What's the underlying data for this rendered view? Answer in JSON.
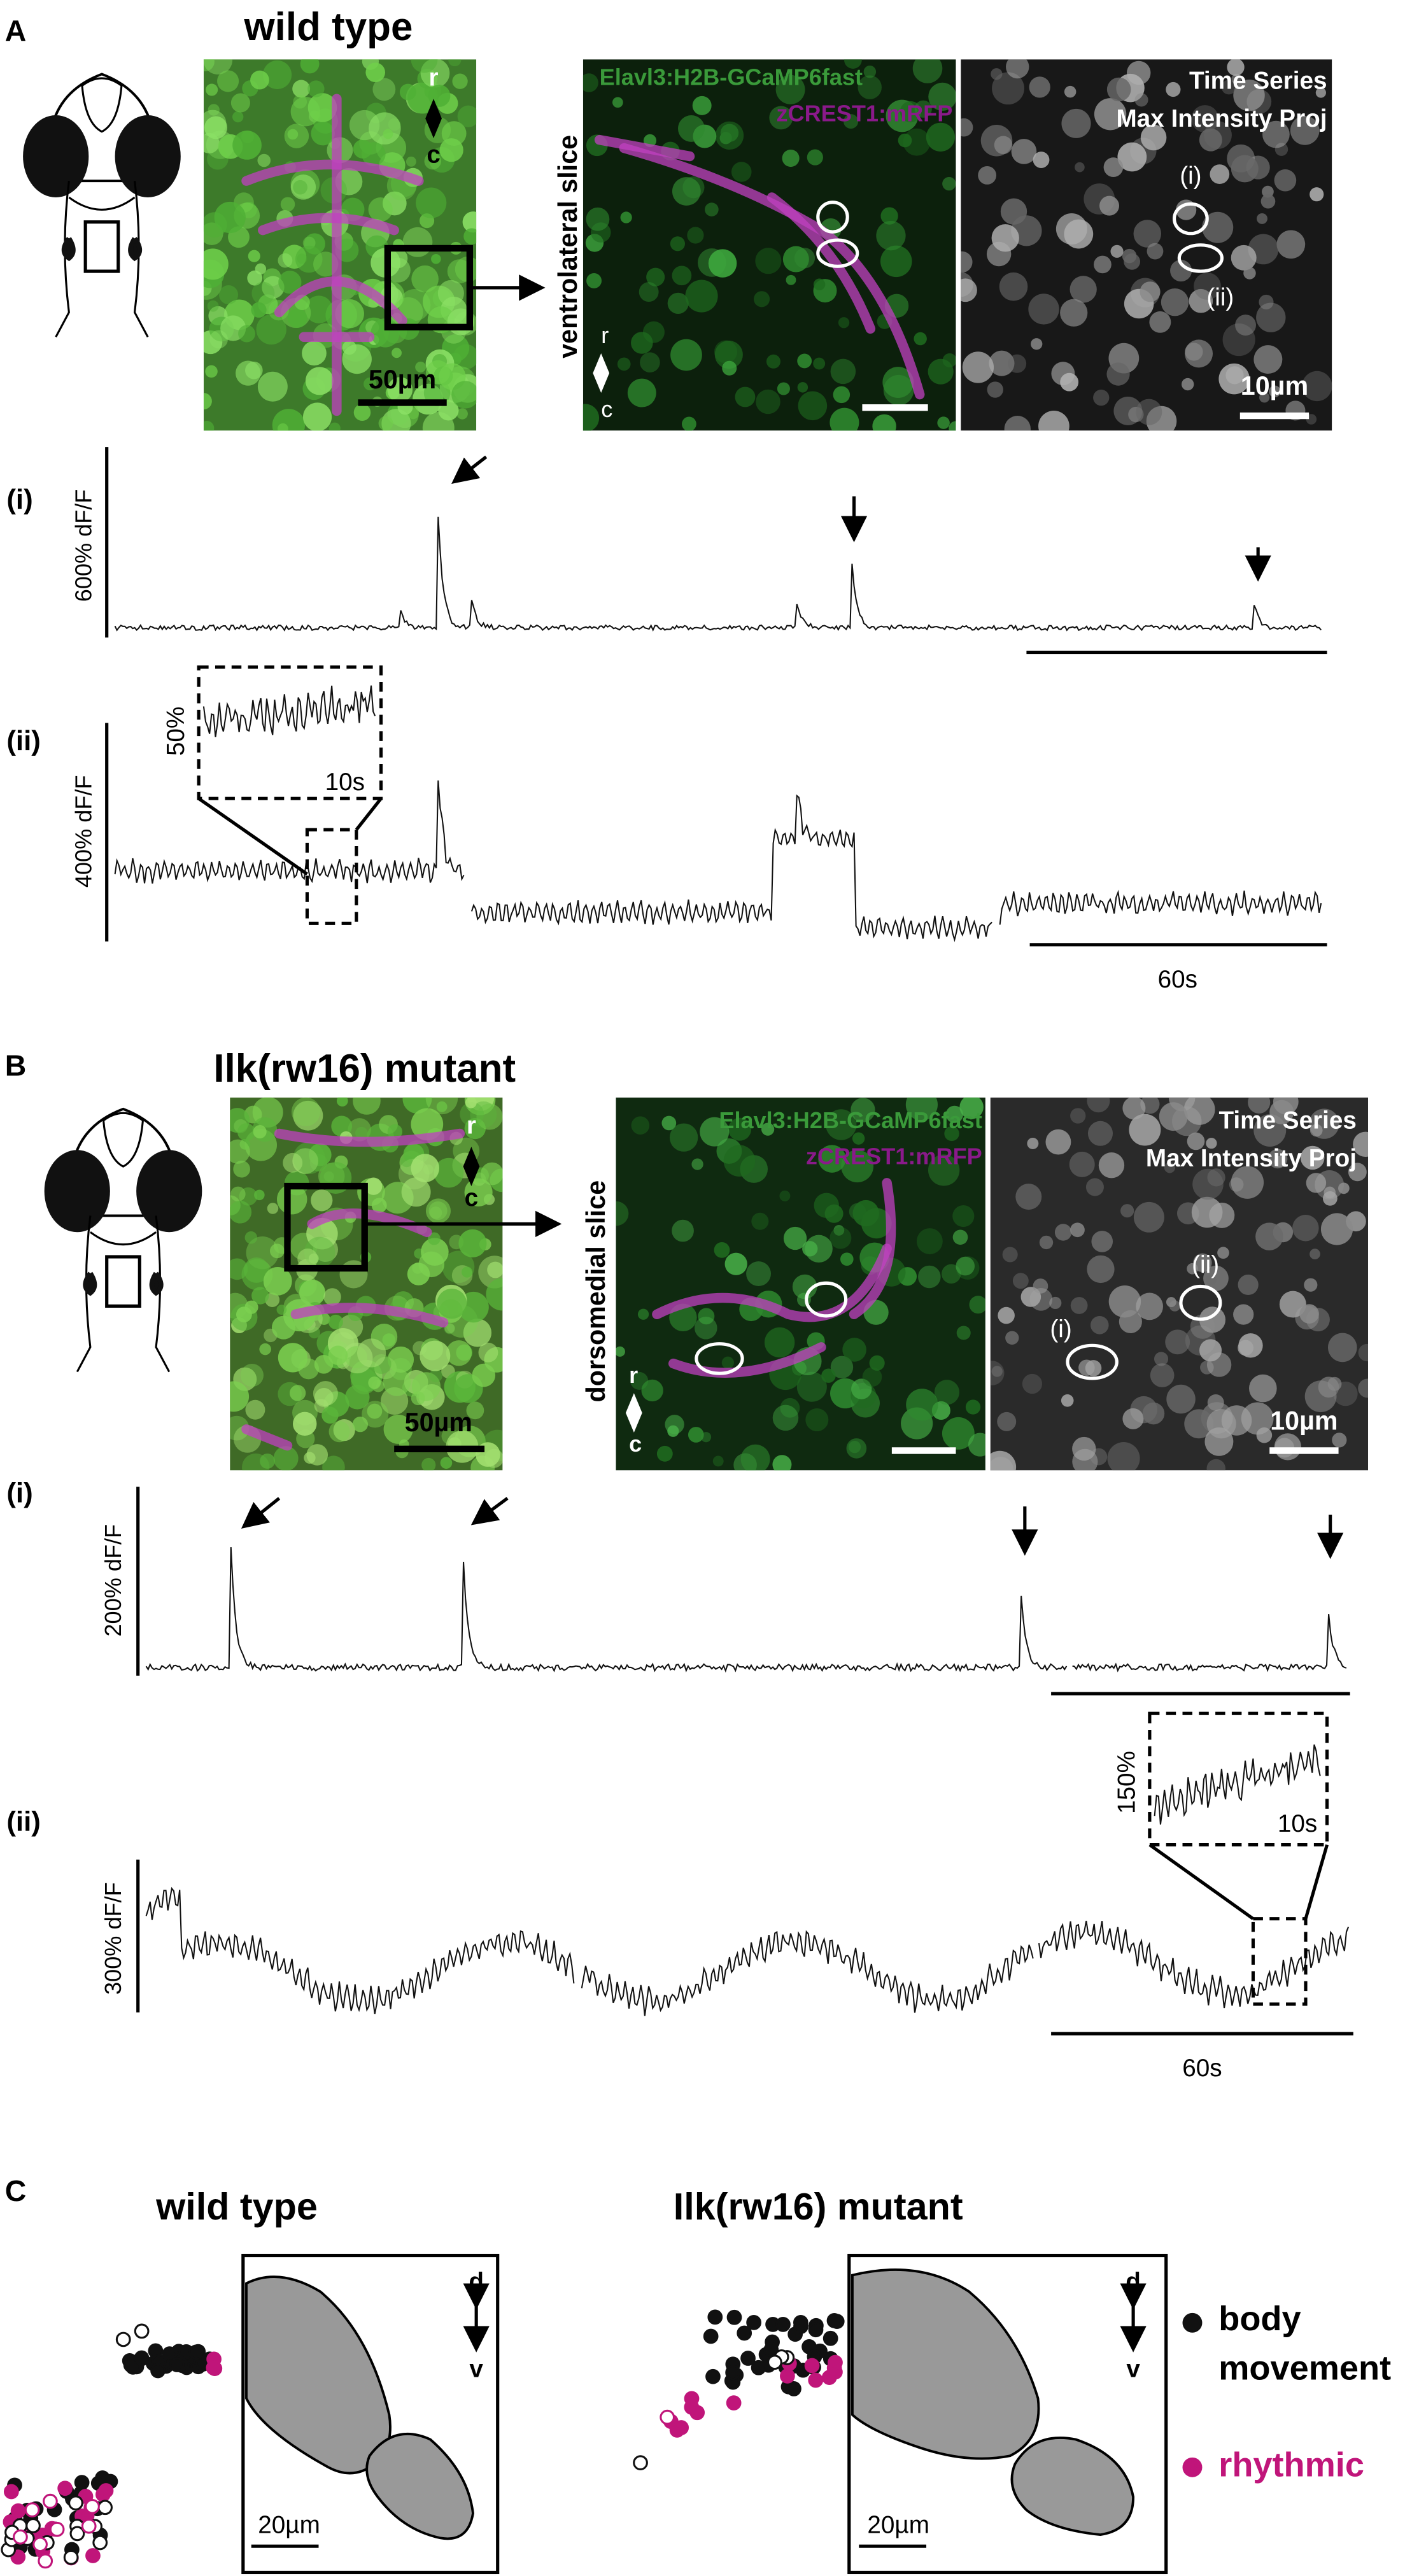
{
  "panel_a": {
    "letter": "A",
    "title": "wild type",
    "rostral": "r",
    "caudal": "c",
    "scale_50": "50µm",
    "slice": "ventrolateral slice",
    "green_label": "Elavl3:H2B-GCaMP6fast",
    "magenta_label": "zCREST1:mRFP",
    "ts_line1": "Time Series",
    "ts_line2": "Max Intensity Proj",
    "roi_i": "(i)",
    "roi_ii": "(ii)",
    "scale_10": "10µm",
    "trace_i": {
      "label": "(i)",
      "ylabel": "600% dF/F"
    },
    "trace_ii": {
      "label": "(ii)",
      "ylabel": "400% dF/F",
      "inset_y": "50%",
      "inset_x": "10s",
      "time_bar": "60s"
    }
  },
  "panel_b": {
    "letter": "B",
    "title": "Ilk(rw16) mutant",
    "rostral": "r",
    "caudal": "c",
    "scale_50": "50µm",
    "slice": "dorsomedial slice",
    "green_label": "Elavl3:H2B-GCaMP6fast",
    "magenta_label": "zCREST1:mRFP",
    "ts_line1": "Time Series",
    "ts_line2": "Max Intensity Proj",
    "roi_i": "(i)",
    "roi_ii": "(ii)",
    "scale_10": "10µm",
    "trace_i": {
      "label": "(i)",
      "ylabel": "200% dF/F"
    },
    "trace_ii": {
      "label": "(ii)",
      "ylabel": "300% dF/F",
      "inset_y": "150%",
      "inset_x": "10s",
      "time_bar": "60s"
    }
  },
  "panel_c": {
    "letter": "C",
    "wt_title": "wild type",
    "mut_title": "Ilk(rw16) mutant",
    "dorsal": "d",
    "ventral": "v",
    "scale_20": "20µm",
    "legend": {
      "body_movement": [
        "body",
        "movement"
      ],
      "rhythmic": "rhythmic"
    }
  }
}
